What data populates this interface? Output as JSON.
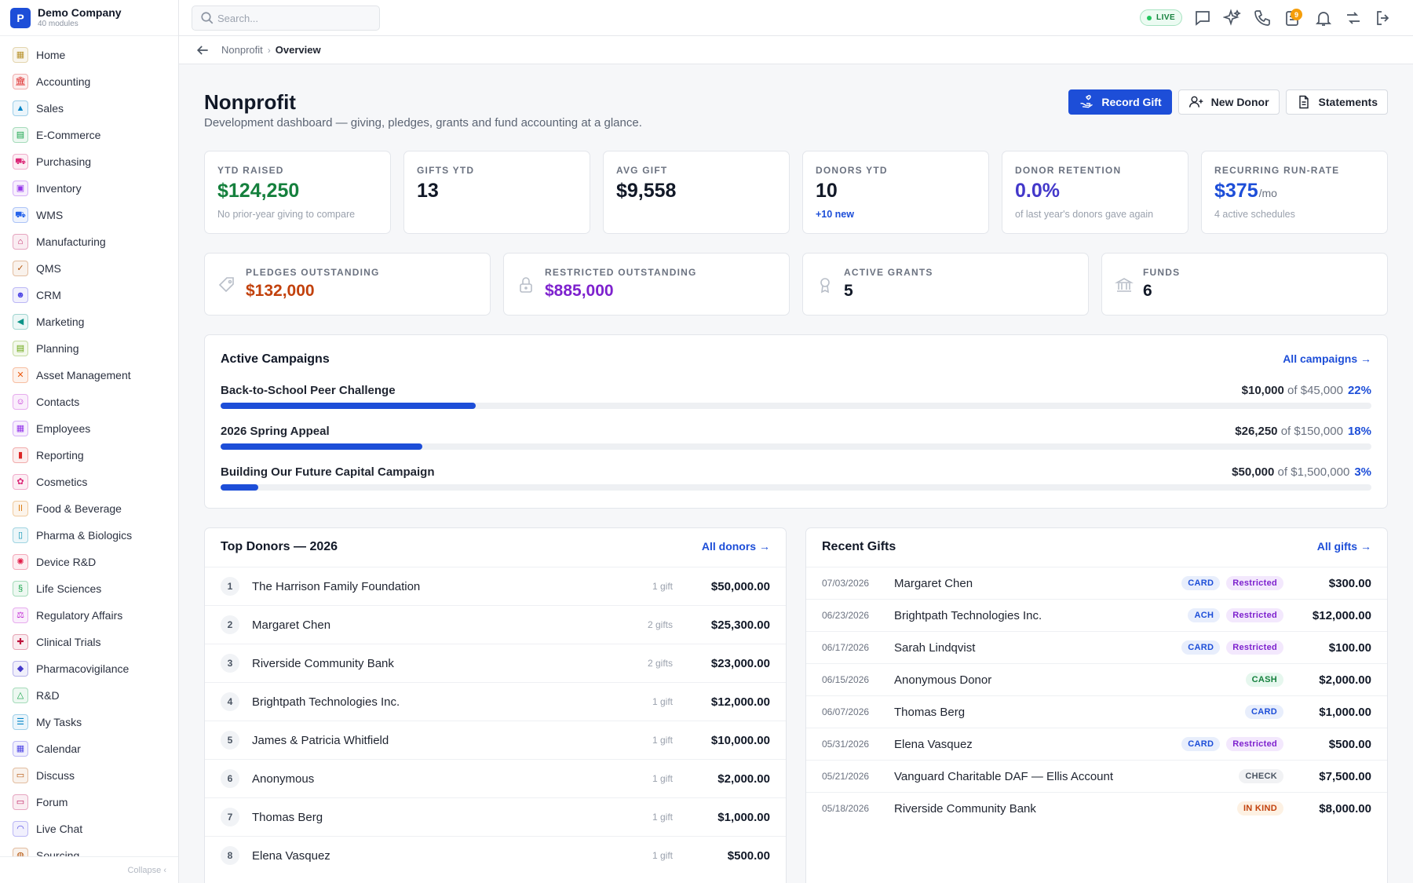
{
  "brand": {
    "logo_letter": "P",
    "name": "Demo Company",
    "sub": "40 modules"
  },
  "sidebar": {
    "items": [
      {
        "label": "Home",
        "icon": "home-icon",
        "color": "#b8922c"
      },
      {
        "label": "Accounting",
        "icon": "bank-icon",
        "color": "#dc2626"
      },
      {
        "label": "Sales",
        "icon": "tag-icon",
        "color": "#0284c7"
      },
      {
        "label": "E-Commerce",
        "icon": "store-icon",
        "color": "#16a34a"
      },
      {
        "label": "Purchasing",
        "icon": "cart-icon",
        "color": "#db2777"
      },
      {
        "label": "Inventory",
        "icon": "box-icon",
        "color": "#9333ea"
      },
      {
        "label": "WMS",
        "icon": "truck-icon",
        "color": "#2563eb"
      },
      {
        "label": "Manufacturing",
        "icon": "factory-icon",
        "color": "#be185d"
      },
      {
        "label": "QMS",
        "icon": "check-badge-icon",
        "color": "#b45309"
      },
      {
        "label": "CRM",
        "icon": "people-icon",
        "color": "#4f46e5"
      },
      {
        "label": "Marketing",
        "icon": "megaphone-icon",
        "color": "#0d9488"
      },
      {
        "label": "Planning",
        "icon": "clipboard-icon",
        "color": "#65a30d"
      },
      {
        "label": "Asset Management",
        "icon": "tools-icon",
        "color": "#ea580c"
      },
      {
        "label": "Contacts",
        "icon": "contact-icon",
        "color": "#c026d3"
      },
      {
        "label": "Employees",
        "icon": "briefcase-icon",
        "color": "#9333ea"
      },
      {
        "label": "Reporting",
        "icon": "bar-chart-icon",
        "color": "#dc2626"
      },
      {
        "label": "Cosmetics",
        "icon": "lotus-icon",
        "color": "#db2777"
      },
      {
        "label": "Food & Beverage",
        "icon": "utensils-icon",
        "color": "#d97706"
      },
      {
        "label": "Pharma & Biologics",
        "icon": "vial-icon",
        "color": "#0891b2"
      },
      {
        "label": "Device R&D",
        "icon": "gear-icon",
        "color": "#e11d48"
      },
      {
        "label": "Life Sciences",
        "icon": "dna-icon",
        "color": "#16a34a"
      },
      {
        "label": "Regulatory Affairs",
        "icon": "scale-icon",
        "color": "#c026d3"
      },
      {
        "label": "Clinical Trials",
        "icon": "clipboard-medical-icon",
        "color": "#be123c"
      },
      {
        "label": "Pharmacovigilance",
        "icon": "shield-icon",
        "color": "#4338ca"
      },
      {
        "label": "R&D",
        "icon": "flask-icon",
        "color": "#16a34a"
      },
      {
        "label": "My Tasks",
        "icon": "checklist-icon",
        "color": "#0284c7"
      },
      {
        "label": "Calendar",
        "icon": "calendar-icon",
        "color": "#4f46e5"
      },
      {
        "label": "Discuss",
        "icon": "chat-icon",
        "color": "#b45309"
      },
      {
        "label": "Forum",
        "icon": "forum-icon",
        "color": "#be185d"
      },
      {
        "label": "Live Chat",
        "icon": "headset-icon",
        "color": "#4f46e5"
      },
      {
        "label": "Sourcing",
        "icon": "globe-icon",
        "color": "#b45309"
      }
    ],
    "collapse_label": "Collapse"
  },
  "topbar": {
    "search_placeholder": "Search...",
    "live_label": "LIVE",
    "notif_count": "9"
  },
  "breadcrumb": {
    "parent": "Nonprofit",
    "current": "Overview"
  },
  "header": {
    "title": "Nonprofit",
    "subtitle": "Development dashboard — giving, pledges, grants and fund accounting at a glance.",
    "record_gift": "Record Gift",
    "new_donor": "New Donor",
    "statements": "Statements"
  },
  "kpis": [
    {
      "label": "YTD RAISED",
      "value": "$124,250",
      "unit": "",
      "note": "No prior-year giving to compare",
      "color": "#15803d",
      "note_color": "#9aa1ad"
    },
    {
      "label": "GIFTS YTD",
      "value": "13",
      "unit": "",
      "note": "",
      "color": "#111827",
      "note_color": "#9aa1ad"
    },
    {
      "label": "AVG GIFT",
      "value": "$9,558",
      "unit": "",
      "note": "",
      "color": "#111827",
      "note_color": "#9aa1ad"
    },
    {
      "label": "DONORS YTD",
      "value": "10",
      "unit": "",
      "note": "+10 new",
      "color": "#111827",
      "note_color": "#1d4ed8"
    },
    {
      "label": "DONOR RETENTION",
      "value": "0.0%",
      "unit": "",
      "note": "of last year's donors gave again",
      "color": "#4338ca",
      "note_color": "#9aa1ad"
    },
    {
      "label": "RECURRING RUN-RATE",
      "value": "$375",
      "unit": "/mo",
      "note": "4 active schedules",
      "color": "#1d4ed8",
      "note_color": "#9aa1ad"
    }
  ],
  "kpis2": [
    {
      "label": "PLEDGES OUTSTANDING",
      "value": "$132,000",
      "icon": "pledge-tag-icon",
      "color": "#c2410c"
    },
    {
      "label": "RESTRICTED OUTSTANDING",
      "value": "$885,000",
      "icon": "lock-icon",
      "color": "#7e22ce"
    },
    {
      "label": "ACTIVE GRANTS",
      "value": "5",
      "icon": "award-icon",
      "color": "#111827"
    },
    {
      "label": "FUNDS",
      "value": "6",
      "icon": "bank-icon",
      "color": "#111827"
    }
  ],
  "campaigns": {
    "title": "Active Campaigns",
    "link": "All campaigns →",
    "of_label": "of",
    "items": [
      {
        "name": "Back-to-School Peer Challenge",
        "raised": "$10,000",
        "goal": "$45,000",
        "pct": "22%",
        "fill": 0.222
      },
      {
        "name": "2026 Spring Appeal",
        "raised": "$26,250",
        "goal": "$150,000",
        "pct": "18%",
        "fill": 0.175
      },
      {
        "name": "Building Our Future Capital Campaign",
        "raised": "$50,000",
        "goal": "$1,500,000",
        "pct": "3%",
        "fill": 0.033
      }
    ]
  },
  "donors": {
    "title": "Top Donors — 2026",
    "link": "All donors →",
    "rows": [
      {
        "rank": "1",
        "name": "The Harrison Family Foundation",
        "gifts": "1 gift",
        "amount": "$50,000.00"
      },
      {
        "rank": "2",
        "name": "Margaret Chen",
        "gifts": "2 gifts",
        "amount": "$25,300.00"
      },
      {
        "rank": "3",
        "name": "Riverside Community Bank",
        "gifts": "2 gifts",
        "amount": "$23,000.00"
      },
      {
        "rank": "4",
        "name": "Brightpath Technologies Inc.",
        "gifts": "1 gift",
        "amount": "$12,000.00"
      },
      {
        "rank": "5",
        "name": "James & Patricia Whitfield",
        "gifts": "1 gift",
        "amount": "$10,000.00"
      },
      {
        "rank": "6",
        "name": "Anonymous",
        "gifts": "1 gift",
        "amount": "$2,000.00"
      },
      {
        "rank": "7",
        "name": "Thomas Berg",
        "gifts": "1 gift",
        "amount": "$1,000.00"
      },
      {
        "rank": "8",
        "name": "Elena Vasquez",
        "gifts": "1 gift",
        "amount": "$500.00"
      }
    ]
  },
  "gifts": {
    "title": "Recent Gifts",
    "link": "All gifts →",
    "rows": [
      {
        "date": "07/03/2026",
        "name": "Margaret Chen",
        "method": "CARD",
        "restricted": "Restricted",
        "amount": "$300.00"
      },
      {
        "date": "06/23/2026",
        "name": "Brightpath Technologies Inc.",
        "method": "ACH",
        "restricted": "Restricted",
        "amount": "$12,000.00"
      },
      {
        "date": "06/17/2026",
        "name": "Sarah Lindqvist",
        "method": "CARD",
        "restricted": "Restricted",
        "amount": "$100.00"
      },
      {
        "date": "06/15/2026",
        "name": "Anonymous Donor",
        "method": "CASH",
        "restricted": "",
        "amount": "$2,000.00"
      },
      {
        "date": "06/07/2026",
        "name": "Thomas Berg",
        "method": "CARD",
        "restricted": "",
        "amount": "$1,000.00"
      },
      {
        "date": "05/31/2026",
        "name": "Elena Vasquez",
        "method": "CARD",
        "restricted": "Restricted",
        "amount": "$500.00"
      },
      {
        "date": "05/21/2026",
        "name": "Vanguard Charitable DAF — Ellis Account",
        "method": "CHECK",
        "restricted": "",
        "amount": "$7,500.00"
      },
      {
        "date": "05/18/2026",
        "name": "Riverside Community Bank",
        "method": "IN KIND",
        "restricted": "",
        "amount": "$8,000.00"
      }
    ]
  }
}
